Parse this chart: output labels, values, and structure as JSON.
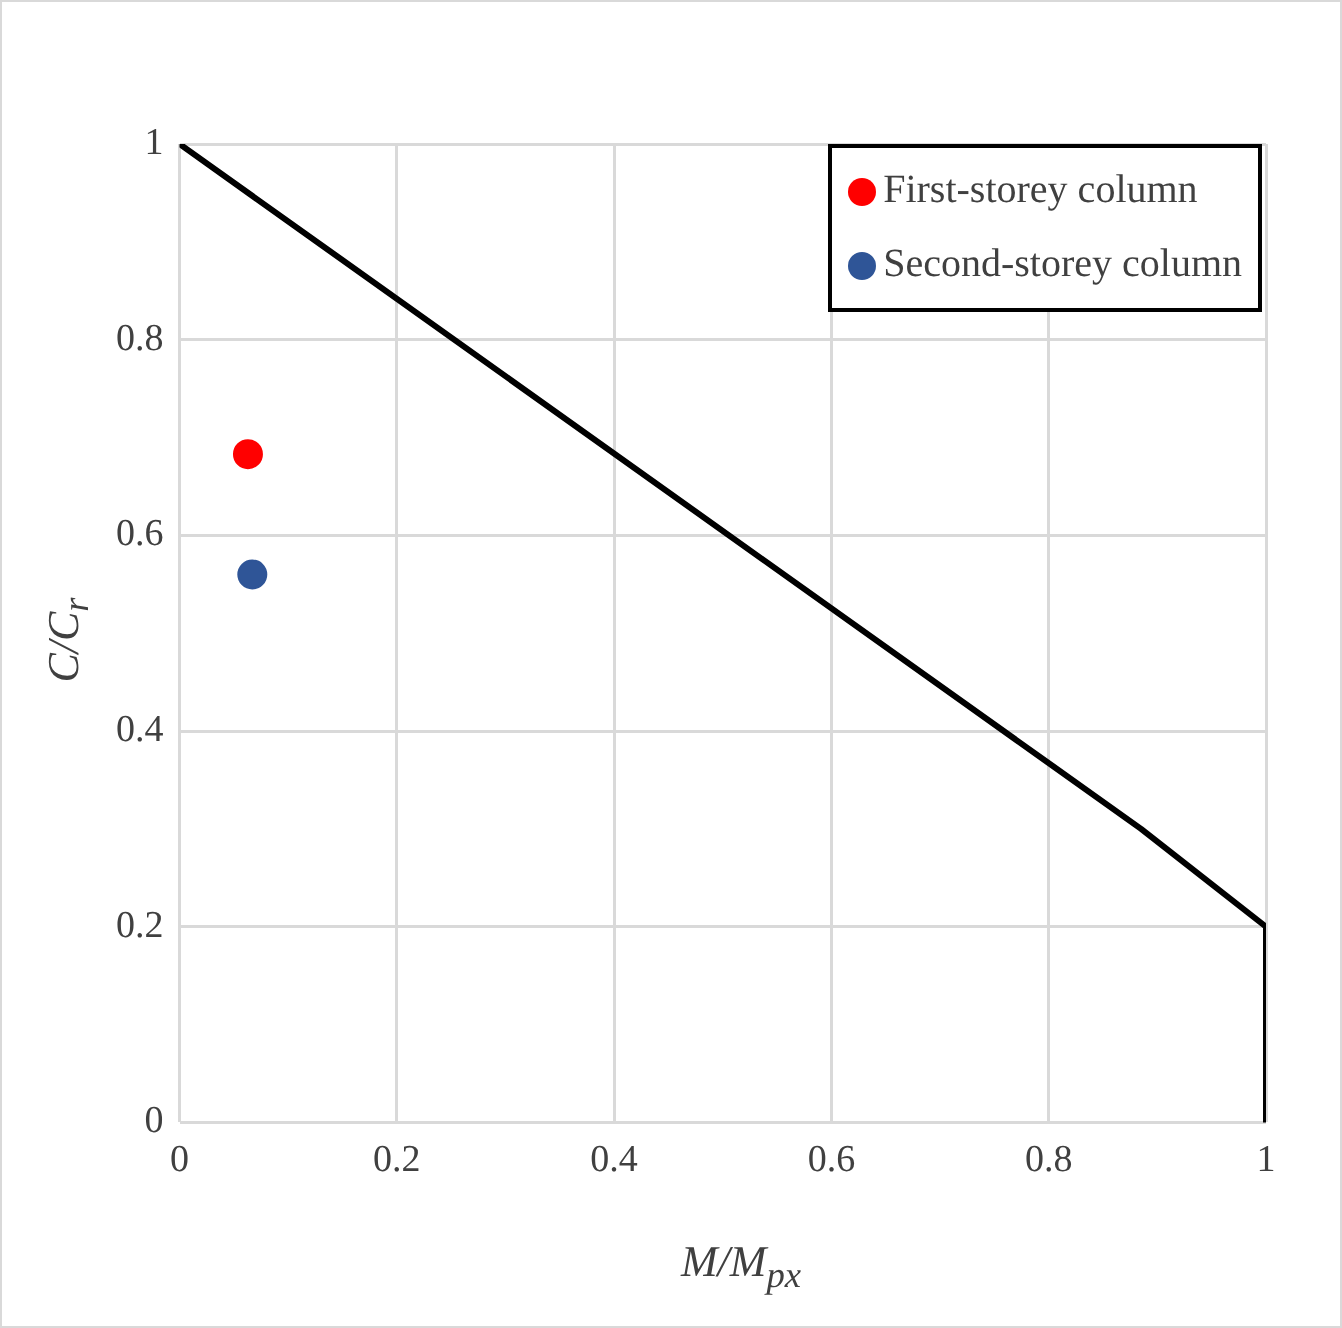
{
  "chart_data": {
    "type": "scatter",
    "xlabel": "M/M$_{px}$",
    "ylabel": "C/C$_{r}$",
    "xlim": [
      0,
      1
    ],
    "ylim": [
      0,
      1
    ],
    "xticks": [
      0,
      0.2,
      0.4,
      0.6,
      0.8,
      1
    ],
    "yticks": [
      0,
      0.2,
      0.4,
      0.6,
      0.8,
      1
    ],
    "grid": true,
    "legend": "top right",
    "marker": "circle",
    "series": [
      {
        "type": "line",
        "x": [
          0,
          0.885,
          1,
          1
        ],
        "values": [
          1,
          0.3,
          0.2,
          0
        ],
        "color": "#000000",
        "marker": "none"
      },
      {
        "name": "First-storey column",
        "x": [
          0.063
        ],
        "values": [
          0.683
        ],
        "color": "#ff0000"
      },
      {
        "name": "Second-storey column",
        "x": [
          0.067
        ],
        "values": [
          0.56
        ],
        "color": "#2f5597"
      }
    ]
  }
}
